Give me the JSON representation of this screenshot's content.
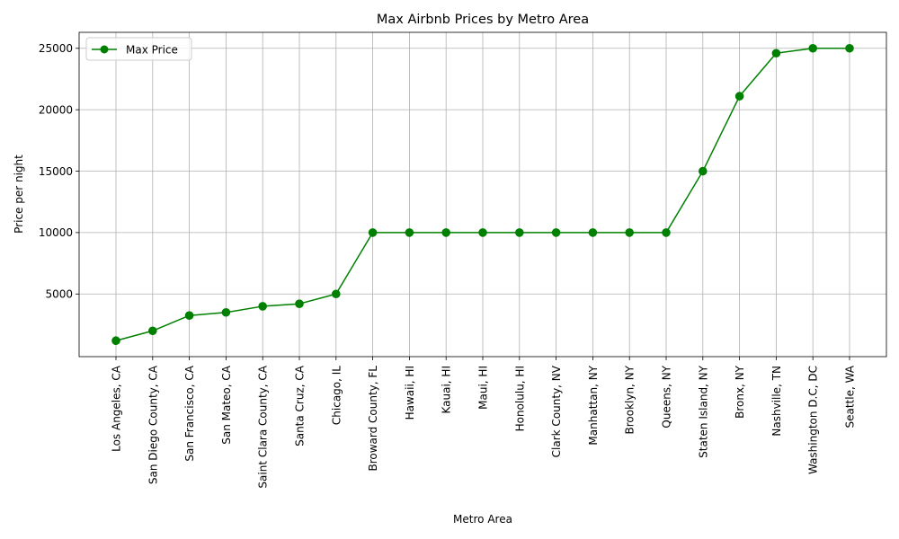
{
  "chart_data": {
    "type": "line",
    "title": "Max Airbnb Prices by Metro Area",
    "xlabel": "Metro Area",
    "ylabel": "Price per night",
    "categories": [
      "Los Angeles, CA",
      "San Diego County, CA",
      "San Francisco, CA",
      "San Mateo, CA",
      "Saint Clara County, CA",
      "Santa Cruz, CA",
      "Chicago, IL",
      "Broward County, FL",
      "Hawaii, HI",
      "Kauai, HI",
      "Maui, HI",
      "Honolulu, HI",
      "Clark County, NV",
      "Manhattan, NY",
      "Brooklyn, NY",
      "Queens, NY",
      "Staten Island, NY",
      "Bronx, NY",
      "Nashville, TN",
      "Washington D.C, DC",
      "Seattle, WA"
    ],
    "series": [
      {
        "name": "Max Price",
        "color": "#008000",
        "marker": "circle",
        "values": [
          1200,
          2000,
          3250,
          3500,
          4000,
          4200,
          5000,
          10000,
          10000,
          10000,
          10000,
          10000,
          10000,
          10000,
          10000,
          10000,
          15000,
          21100,
          24600,
          25000,
          25000
        ]
      }
    ],
    "yticks": [
      5000,
      10000,
      15000,
      20000,
      25000
    ],
    "ylim": [
      -100,
      26300
    ],
    "grid": true,
    "legend_position": "top-left"
  }
}
